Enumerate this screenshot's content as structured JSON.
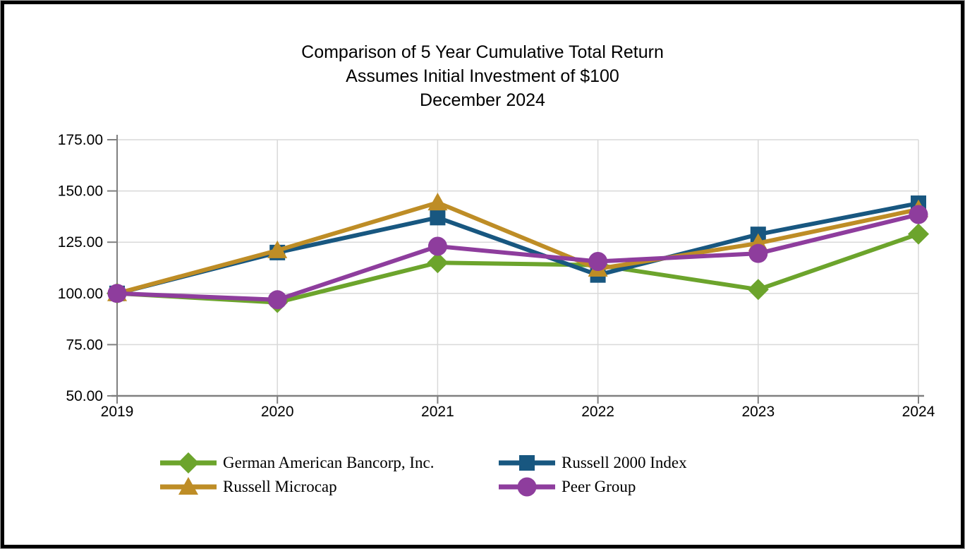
{
  "frame": {
    "background": "#ffffff",
    "border_color": "#000000",
    "outer_edge_color": "#a3a3a3"
  },
  "chart_data": {
    "type": "line",
    "title": "Comparison of 5 Year Cumulative Total Return",
    "subtitle": "Assumes Initial Investment of $100",
    "date_line": "December 2024",
    "x_tick_labels": [
      "2019",
      "2020",
      "2021",
      "2022",
      "2023",
      "2024"
    ],
    "y_ticks": [
      175,
      150,
      125,
      100,
      75,
      50
    ],
    "y_tick_labels": [
      "175.00",
      "150.00",
      "125.00",
      "100.00",
      "75.00",
      "50.00"
    ],
    "ylim": [
      50,
      175
    ],
    "grid": true,
    "legend_position": "bottom",
    "axis_color": "#808080",
    "gridline_color": "#d9d9d9",
    "text_color": "#000000",
    "series": [
      {
        "name": "German American Bancorp, Inc.",
        "marker": "diamond",
        "color": "#6CA42C",
        "values": [
          100.0,
          95.6,
          115.0,
          113.8,
          101.9,
          129.0
        ]
      },
      {
        "name": "Russell 2000 Index",
        "marker": "square",
        "color": "#185780",
        "values": [
          100.0,
          119.95,
          137.0,
          109.0,
          128.8,
          144.0
        ]
      },
      {
        "name": "Russell Microcap",
        "marker": "triangle",
        "color": "#BE8D26",
        "values": [
          100.0,
          121.0,
          144.3,
          112.0,
          124.5,
          141.0
        ]
      },
      {
        "name": "Peer Group",
        "marker": "circle",
        "color": "#8E3D9D",
        "values": [
          100.0,
          96.9,
          123.0,
          115.6,
          119.5,
          138.5
        ]
      }
    ]
  }
}
